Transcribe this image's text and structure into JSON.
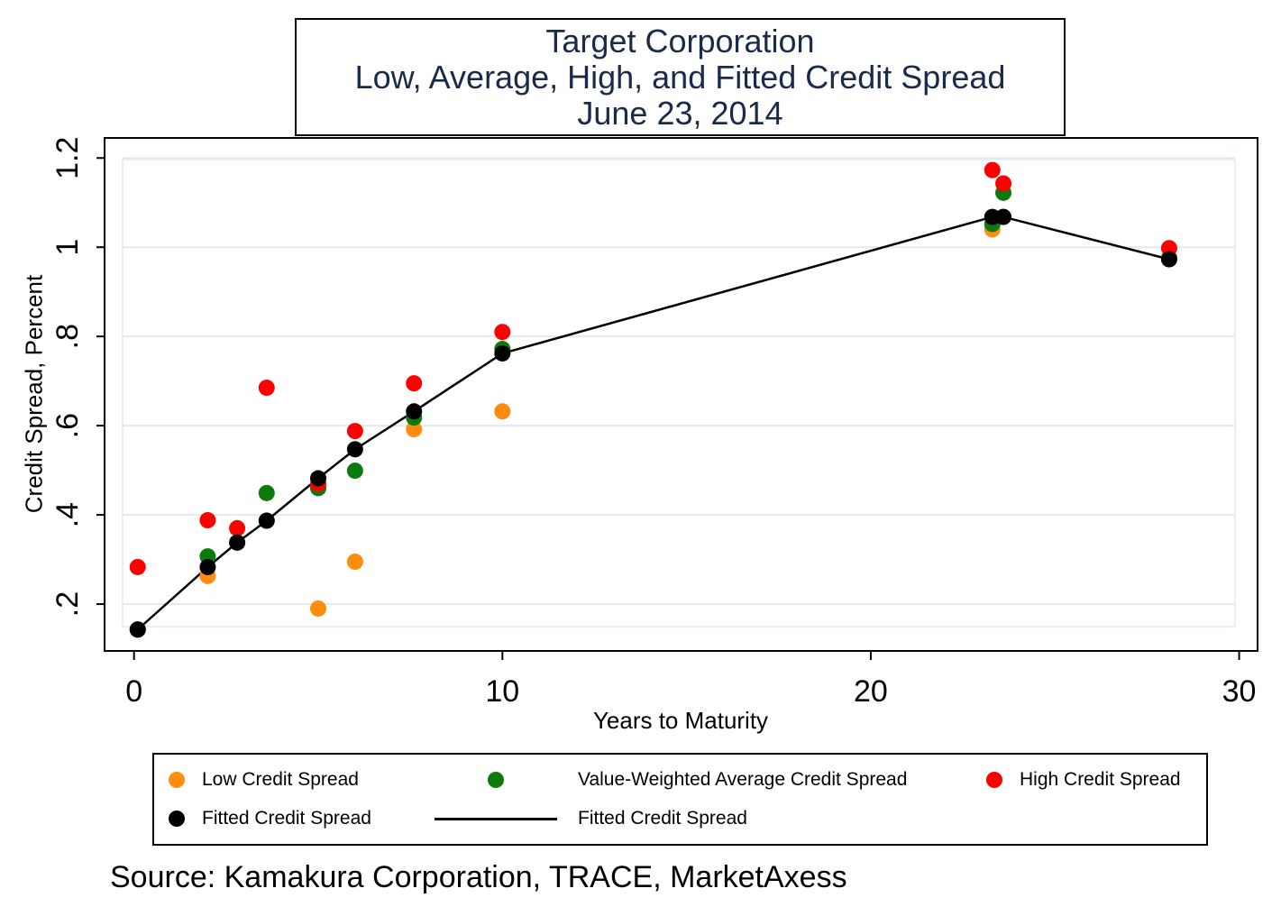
{
  "chart_data": {
    "type": "scatter",
    "title": [
      "Target Corporation",
      "Low, Average, High, and Fitted Credit Spread",
      "June 23, 2014"
    ],
    "xlabel": "Years to Maturity",
    "ylabel": "Credit Spread, Percent",
    "xlim": [
      -0.8,
      30.5
    ],
    "ylim": [
      0.095,
      1.245
    ],
    "xticks": [
      {
        "value": 0,
        "label": "0"
      },
      {
        "value": 10,
        "label": "10"
      },
      {
        "value": 20,
        "label": "20"
      },
      {
        "value": 30,
        "label": "30"
      }
    ],
    "yticks": [
      {
        "value": 0.2,
        "label": ".2"
      },
      {
        "value": 0.4,
        "label": ".4"
      },
      {
        "value": 0.6,
        "label": ".6"
      },
      {
        "value": 0.8,
        "label": ".8"
      },
      {
        "value": 1.0,
        "label": "1"
      },
      {
        "value": 1.2,
        "label": "1.2"
      }
    ],
    "grid": true,
    "legend_position": "bottom",
    "series": [
      {
        "name": "Low Credit Spread",
        "kind": "scatter",
        "color": "#ff8c0f",
        "x": [
          0.1,
          2.0,
          2.8,
          3.6,
          5.0,
          6.0,
          7.6,
          10.0,
          23.3,
          23.6,
          28.1
        ],
        "y": [
          0.143,
          0.263,
          0.338,
          0.387,
          0.19,
          0.295,
          0.592,
          0.632,
          1.04,
          1.068,
          0.977
        ]
      },
      {
        "name": "Value-Weighted Average Credit Spread",
        "kind": "scatter",
        "color": "#0d7a0d",
        "x": [
          0.1,
          2.0,
          2.8,
          3.6,
          5.0,
          6.0,
          7.6,
          10.0,
          23.3,
          23.6,
          28.1
        ],
        "y": [
          0.143,
          0.307,
          0.338,
          0.449,
          0.46,
          0.499,
          0.618,
          0.772,
          1.052,
          1.122,
          0.975
        ]
      },
      {
        "name": "High Credit Spread",
        "kind": "scatter",
        "color": "#ff0000",
        "x": [
          0.1,
          2.0,
          2.8,
          3.6,
          5.0,
          6.0,
          7.6,
          10.0,
          23.3,
          23.6,
          28.1
        ],
        "y": [
          0.283,
          0.388,
          0.37,
          0.685,
          0.47,
          0.588,
          0.695,
          0.81,
          1.173,
          1.143,
          0.998
        ]
      },
      {
        "name": "Fitted Credit Spread",
        "kind": "scatter",
        "color": "#000000",
        "x": [
          0.1,
          2.0,
          2.8,
          3.6,
          5.0,
          6.0,
          7.6,
          10.0,
          23.3,
          23.6,
          28.1
        ],
        "y": [
          0.143,
          0.283,
          0.338,
          0.387,
          0.482,
          0.547,
          0.632,
          0.762,
          1.068,
          1.068,
          0.973
        ]
      },
      {
        "name": "Fitted Credit Spread",
        "kind": "line",
        "color": "#000000",
        "x": [
          0.1,
          2.0,
          2.8,
          3.6,
          5.0,
          6.0,
          7.6,
          10.0,
          23.3,
          23.6,
          28.1
        ],
        "y": [
          0.143,
          0.283,
          0.338,
          0.387,
          0.482,
          0.547,
          0.632,
          0.762,
          1.068,
          1.068,
          0.973
        ]
      }
    ]
  },
  "legend": [
    {
      "label": "Low Credit Spread",
      "swatch": "dot",
      "color": "#ff8c0f"
    },
    {
      "label": "Value-Weighted Average Credit Spread",
      "swatch": "dot",
      "color": "#0d7a0d"
    },
    {
      "label": "High Credit Spread",
      "swatch": "dot",
      "color": "#ff0000"
    },
    {
      "label": "Fitted Credit Spread",
      "swatch": "dot",
      "color": "#000000"
    },
    {
      "label": "Fitted Credit Spread",
      "swatch": "line",
      "color": "#000000"
    }
  ],
  "source": "Source: Kamakura Corporation, TRACE, MarketAxess"
}
